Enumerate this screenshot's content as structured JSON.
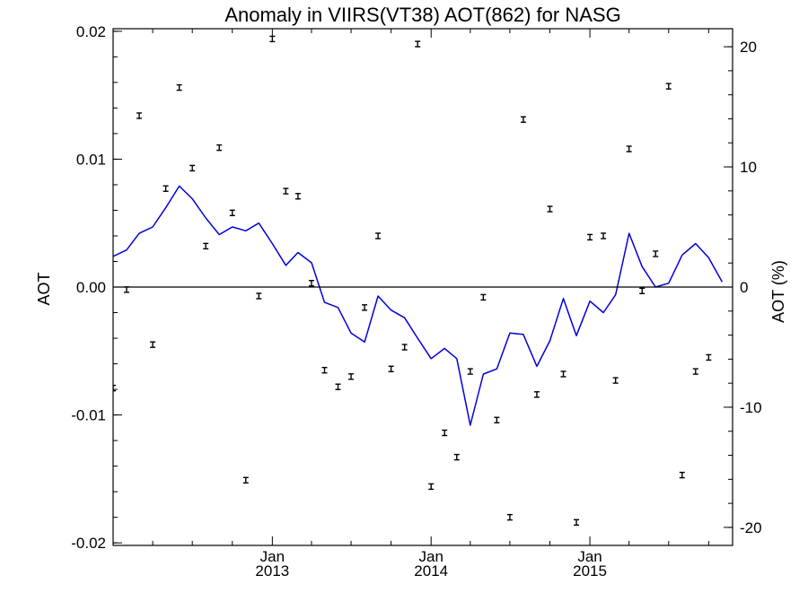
{
  "chart_data": {
    "type": "line",
    "title": "Anomaly in VIIRS(VT38) AOT(862) for NASG",
    "ylabel": "AOT",
    "ylabel_right": "AOT (%)",
    "xlim": [
      "2012-01-01",
      "2015-11-25"
    ],
    "ylim": [
      -0.0202,
      0.0202
    ],
    "ylim_right": [
      -21.5,
      21.5
    ],
    "x_ticks": [
      "Jan\n2013",
      "Jan\n2014",
      "Jan\n2015"
    ],
    "x_tick_dates": [
      "2013-01-01",
      "2014-01-01",
      "2015-01-01"
    ],
    "y_ticks": [
      "0.02",
      "0.01",
      "0.00",
      "-0.01",
      "-0.02"
    ],
    "y_tick_values": [
      0.02,
      0.01,
      0.0,
      -0.01,
      -0.02
    ],
    "y_right_ticks": [
      "20",
      "10",
      "0",
      "-10",
      "-20"
    ],
    "y_right_tick_values": [
      20,
      10,
      0,
      -10,
      -20
    ],
    "zero_line": true,
    "series": [
      {
        "color": "#0000dd",
        "axis": "left",
        "style": "line",
        "points": [
          [
            "2012-01-01",
            0.0024
          ],
          [
            "2012-02-01",
            0.0029
          ],
          [
            "2012-03-01",
            0.0042
          ],
          [
            "2012-04-01",
            0.0047
          ],
          [
            "2012-05-01",
            0.0062
          ],
          [
            "2012-06-01",
            0.0079
          ],
          [
            "2012-07-01",
            0.0069
          ],
          [
            "2012-08-01",
            0.0054
          ],
          [
            "2012-09-01",
            0.0041
          ],
          [
            "2012-10-01",
            0.0047
          ],
          [
            "2012-11-01",
            0.0044
          ],
          [
            "2012-12-01",
            0.005
          ],
          [
            "2013-01-01",
            0.0034
          ],
          [
            "2013-02-01",
            0.0017
          ],
          [
            "2013-03-01",
            0.0027
          ],
          [
            "2013-04-01",
            0.0019
          ],
          [
            "2013-05-01",
            -0.0012
          ],
          [
            "2013-06-01",
            -0.0016
          ],
          [
            "2013-07-01",
            -0.0036
          ],
          [
            "2013-08-01",
            -0.0043
          ],
          [
            "2013-09-01",
            -0.0007
          ],
          [
            "2013-10-01",
            -0.0018
          ],
          [
            "2013-11-01",
            -0.0024
          ],
          [
            "2013-12-01",
            -0.004
          ],
          [
            "2014-01-01",
            -0.0056
          ],
          [
            "2014-02-01",
            -0.0048
          ],
          [
            "2014-03-01",
            -0.0056
          ],
          [
            "2014-04-01",
            -0.0108
          ],
          [
            "2014-05-01",
            -0.0068
          ],
          [
            "2014-06-01",
            -0.0064
          ],
          [
            "2014-07-01",
            -0.0036
          ],
          [
            "2014-08-01",
            -0.0037
          ],
          [
            "2014-09-01",
            -0.0062
          ],
          [
            "2014-10-01",
            -0.0042
          ],
          [
            "2014-11-01",
            -0.0009
          ],
          [
            "2014-12-01",
            -0.0038
          ],
          [
            "2015-01-01",
            -0.0011
          ],
          [
            "2015-02-01",
            -0.002
          ],
          [
            "2015-03-01",
            -0.0006
          ],
          [
            "2015-04-01",
            0.0042
          ],
          [
            "2015-05-01",
            0.0016
          ],
          [
            "2015-06-01",
            0.0
          ],
          [
            "2015-07-01",
            0.0003
          ],
          [
            "2015-08-01",
            0.0025
          ],
          [
            "2015-09-01",
            0.0034
          ],
          [
            "2015-10-01",
            0.0023
          ],
          [
            "2015-11-01",
            0.0004
          ]
        ]
      },
      {
        "color": "#000000",
        "axis": "left",
        "style": "errorbar",
        "points": [
          [
            "2012-01-01",
            -0.0079
          ],
          [
            "2012-02-01",
            -0.0002
          ],
          [
            "2012-03-01",
            0.0134
          ],
          [
            "2012-04-01",
            -0.0045
          ],
          [
            "2012-05-01",
            0.0077
          ],
          [
            "2012-06-01",
            0.0156
          ],
          [
            "2012-07-01",
            0.0093
          ],
          [
            "2012-08-01",
            0.0032
          ],
          [
            "2012-09-01",
            0.0109
          ],
          [
            "2012-10-01",
            0.0058
          ],
          [
            "2012-11-01",
            -0.0151
          ],
          [
            "2012-12-01",
            -0.0007
          ],
          [
            "2013-01-01",
            0.0194
          ],
          [
            "2013-02-01",
            0.0075
          ],
          [
            "2013-03-01",
            0.0071
          ],
          [
            "2013-04-01",
            0.0003
          ],
          [
            "2013-05-01",
            -0.0065
          ],
          [
            "2013-06-01",
            -0.0078
          ],
          [
            "2013-07-01",
            -0.007
          ],
          [
            "2013-08-01",
            -0.0016
          ],
          [
            "2013-09-01",
            0.004
          ],
          [
            "2013-10-01",
            -0.0064
          ],
          [
            "2013-11-01",
            -0.0047
          ],
          [
            "2013-12-01",
            0.019
          ],
          [
            "2014-01-01",
            -0.0156
          ],
          [
            "2014-02-01",
            -0.0114
          ],
          [
            "2014-03-01",
            -0.0133
          ],
          [
            "2014-04-01",
            -0.0066
          ],
          [
            "2014-05-01",
            -0.0008
          ],
          [
            "2014-06-01",
            -0.0104
          ],
          [
            "2014-07-01",
            -0.018
          ],
          [
            "2014-08-01",
            0.0131
          ],
          [
            "2014-09-01",
            -0.0084
          ],
          [
            "2014-10-01",
            0.0061
          ],
          [
            "2014-11-01",
            -0.0068
          ],
          [
            "2014-12-01",
            -0.0184
          ],
          [
            "2015-01-01",
            0.0039
          ],
          [
            "2015-02-01",
            0.004
          ],
          [
            "2015-03-01",
            -0.0073
          ],
          [
            "2015-04-01",
            0.0108
          ],
          [
            "2015-05-01",
            -0.0003
          ],
          [
            "2015-06-01",
            0.0026
          ],
          [
            "2015-07-01",
            0.0157
          ],
          [
            "2015-08-01",
            -0.0147
          ],
          [
            "2015-09-01",
            -0.0066
          ],
          [
            "2015-10-01",
            -0.0055
          ]
        ]
      }
    ]
  }
}
